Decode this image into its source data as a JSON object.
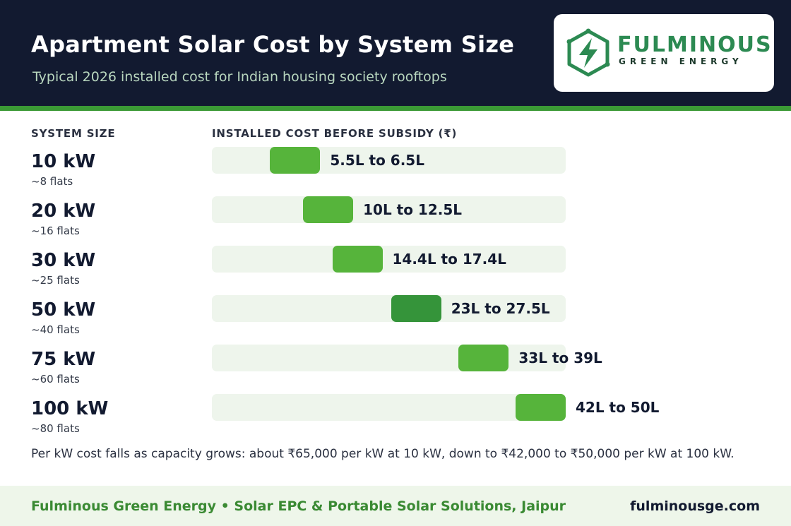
{
  "header": {
    "title": "Apartment Solar Cost by System Size",
    "subtitle": "Typical 2026 installed cost for Indian housing society rooftops",
    "background_color": "#121a30",
    "accent_color": "#3b9a35"
  },
  "logo": {
    "name": "FULMINOUS",
    "tagline": "GREEN ENERGY",
    "icon": "lightning-hexagon-logo",
    "color": "#2c8a52"
  },
  "chart_data": {
    "type": "bar",
    "title": "Apartment Solar Cost by System Size",
    "subtitle": "Typical 2026 installed cost for Indian housing society rooftops",
    "category_axis_label": "SYSTEM SIZE",
    "value_axis_label": "INSTALLED COST BEFORE SUBSIDY  (₹)",
    "unit": "lakh ₹",
    "categories": [
      "10 kW",
      "20 kW",
      "30 kW",
      "50 kW",
      "75 kW",
      "100 kW"
    ],
    "sublabels": [
      "~8 flats",
      "~16 flats",
      "~25 flats",
      "~40 flats",
      "~60 flats",
      "~80 flats"
    ],
    "low": [
      5.5,
      10,
      14.4,
      23,
      33,
      42
    ],
    "high": [
      6.5,
      12.5,
      17.4,
      27.5,
      39,
      50
    ],
    "range_labels": [
      "5.5L to 6.5L",
      "10L to 12.5L",
      "14.4L to 17.4L",
      "23L to 27.5L",
      "33L to 39L",
      "42L to 50L"
    ],
    "xlim": [
      0,
      50
    ],
    "highlight_index": 3,
    "colors": {
      "bar": "#56b43b",
      "bar_highlight": "#35943a",
      "track": "#eef5ec"
    },
    "grid": false
  },
  "note": "Per kW cost falls as capacity grows: about ₹65,000 per kW at 10 kW, down to ₹42,000 to ₹50,000 per kW at 100 kW.",
  "footer": {
    "brand_line": "Fulminous Green Energy  •  Solar EPC & Portable Solar Solutions, Jaipur",
    "url": "fulminousge.com",
    "background_color": "#eef6ea"
  }
}
